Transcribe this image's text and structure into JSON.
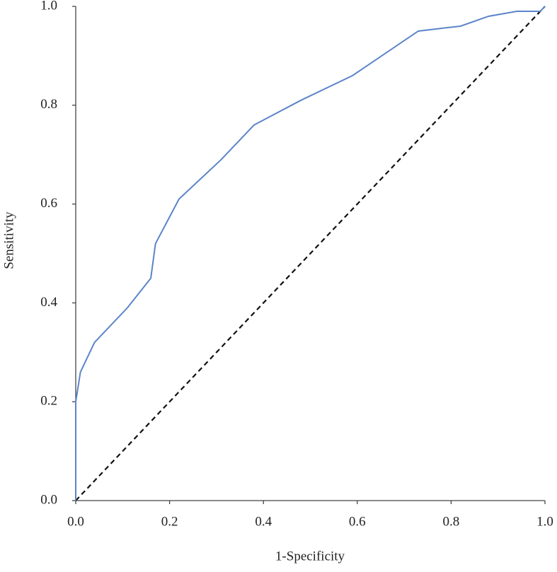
{
  "chart_data": {
    "type": "line",
    "x_label": "1-Specificity",
    "y_label": "Sensitivity",
    "xlim": [
      0,
      1
    ],
    "ylim": [
      0,
      1
    ],
    "xticks": [
      {
        "value": 0,
        "label": "0.0"
      },
      0.2,
      0.4,
      0.6,
      0.8,
      {
        "value": 1,
        "label": "1.0"
      }
    ],
    "yticks": [
      {
        "value": 0,
        "label": "0.0"
      },
      0.2,
      0.4,
      0.6,
      0.8,
      {
        "value": 1,
        "label": "1.0"
      }
    ],
    "grid": false,
    "series": [
      {
        "color": "#5b84c9",
        "dashed": false,
        "x": [
          0,
          0,
          0.01,
          0.04,
          0.11,
          0.16,
          0.17,
          0.22,
          0.31,
          0.38,
          0.48,
          0.59,
          0.73,
          0.82,
          0.88,
          0.94,
          0.99,
          1
        ],
        "values": [
          0,
          0.2,
          0.26,
          0.32,
          0.39,
          0.45,
          0.52,
          0.61,
          0.69,
          0.76,
          0.81,
          0.86,
          0.95,
          0.96,
          0.98,
          0.99,
          0.99,
          1
        ]
      },
      {
        "color": "#111111",
        "dashed": true,
        "x": [
          0,
          1
        ],
        "values": [
          0,
          1
        ]
      }
    ]
  }
}
